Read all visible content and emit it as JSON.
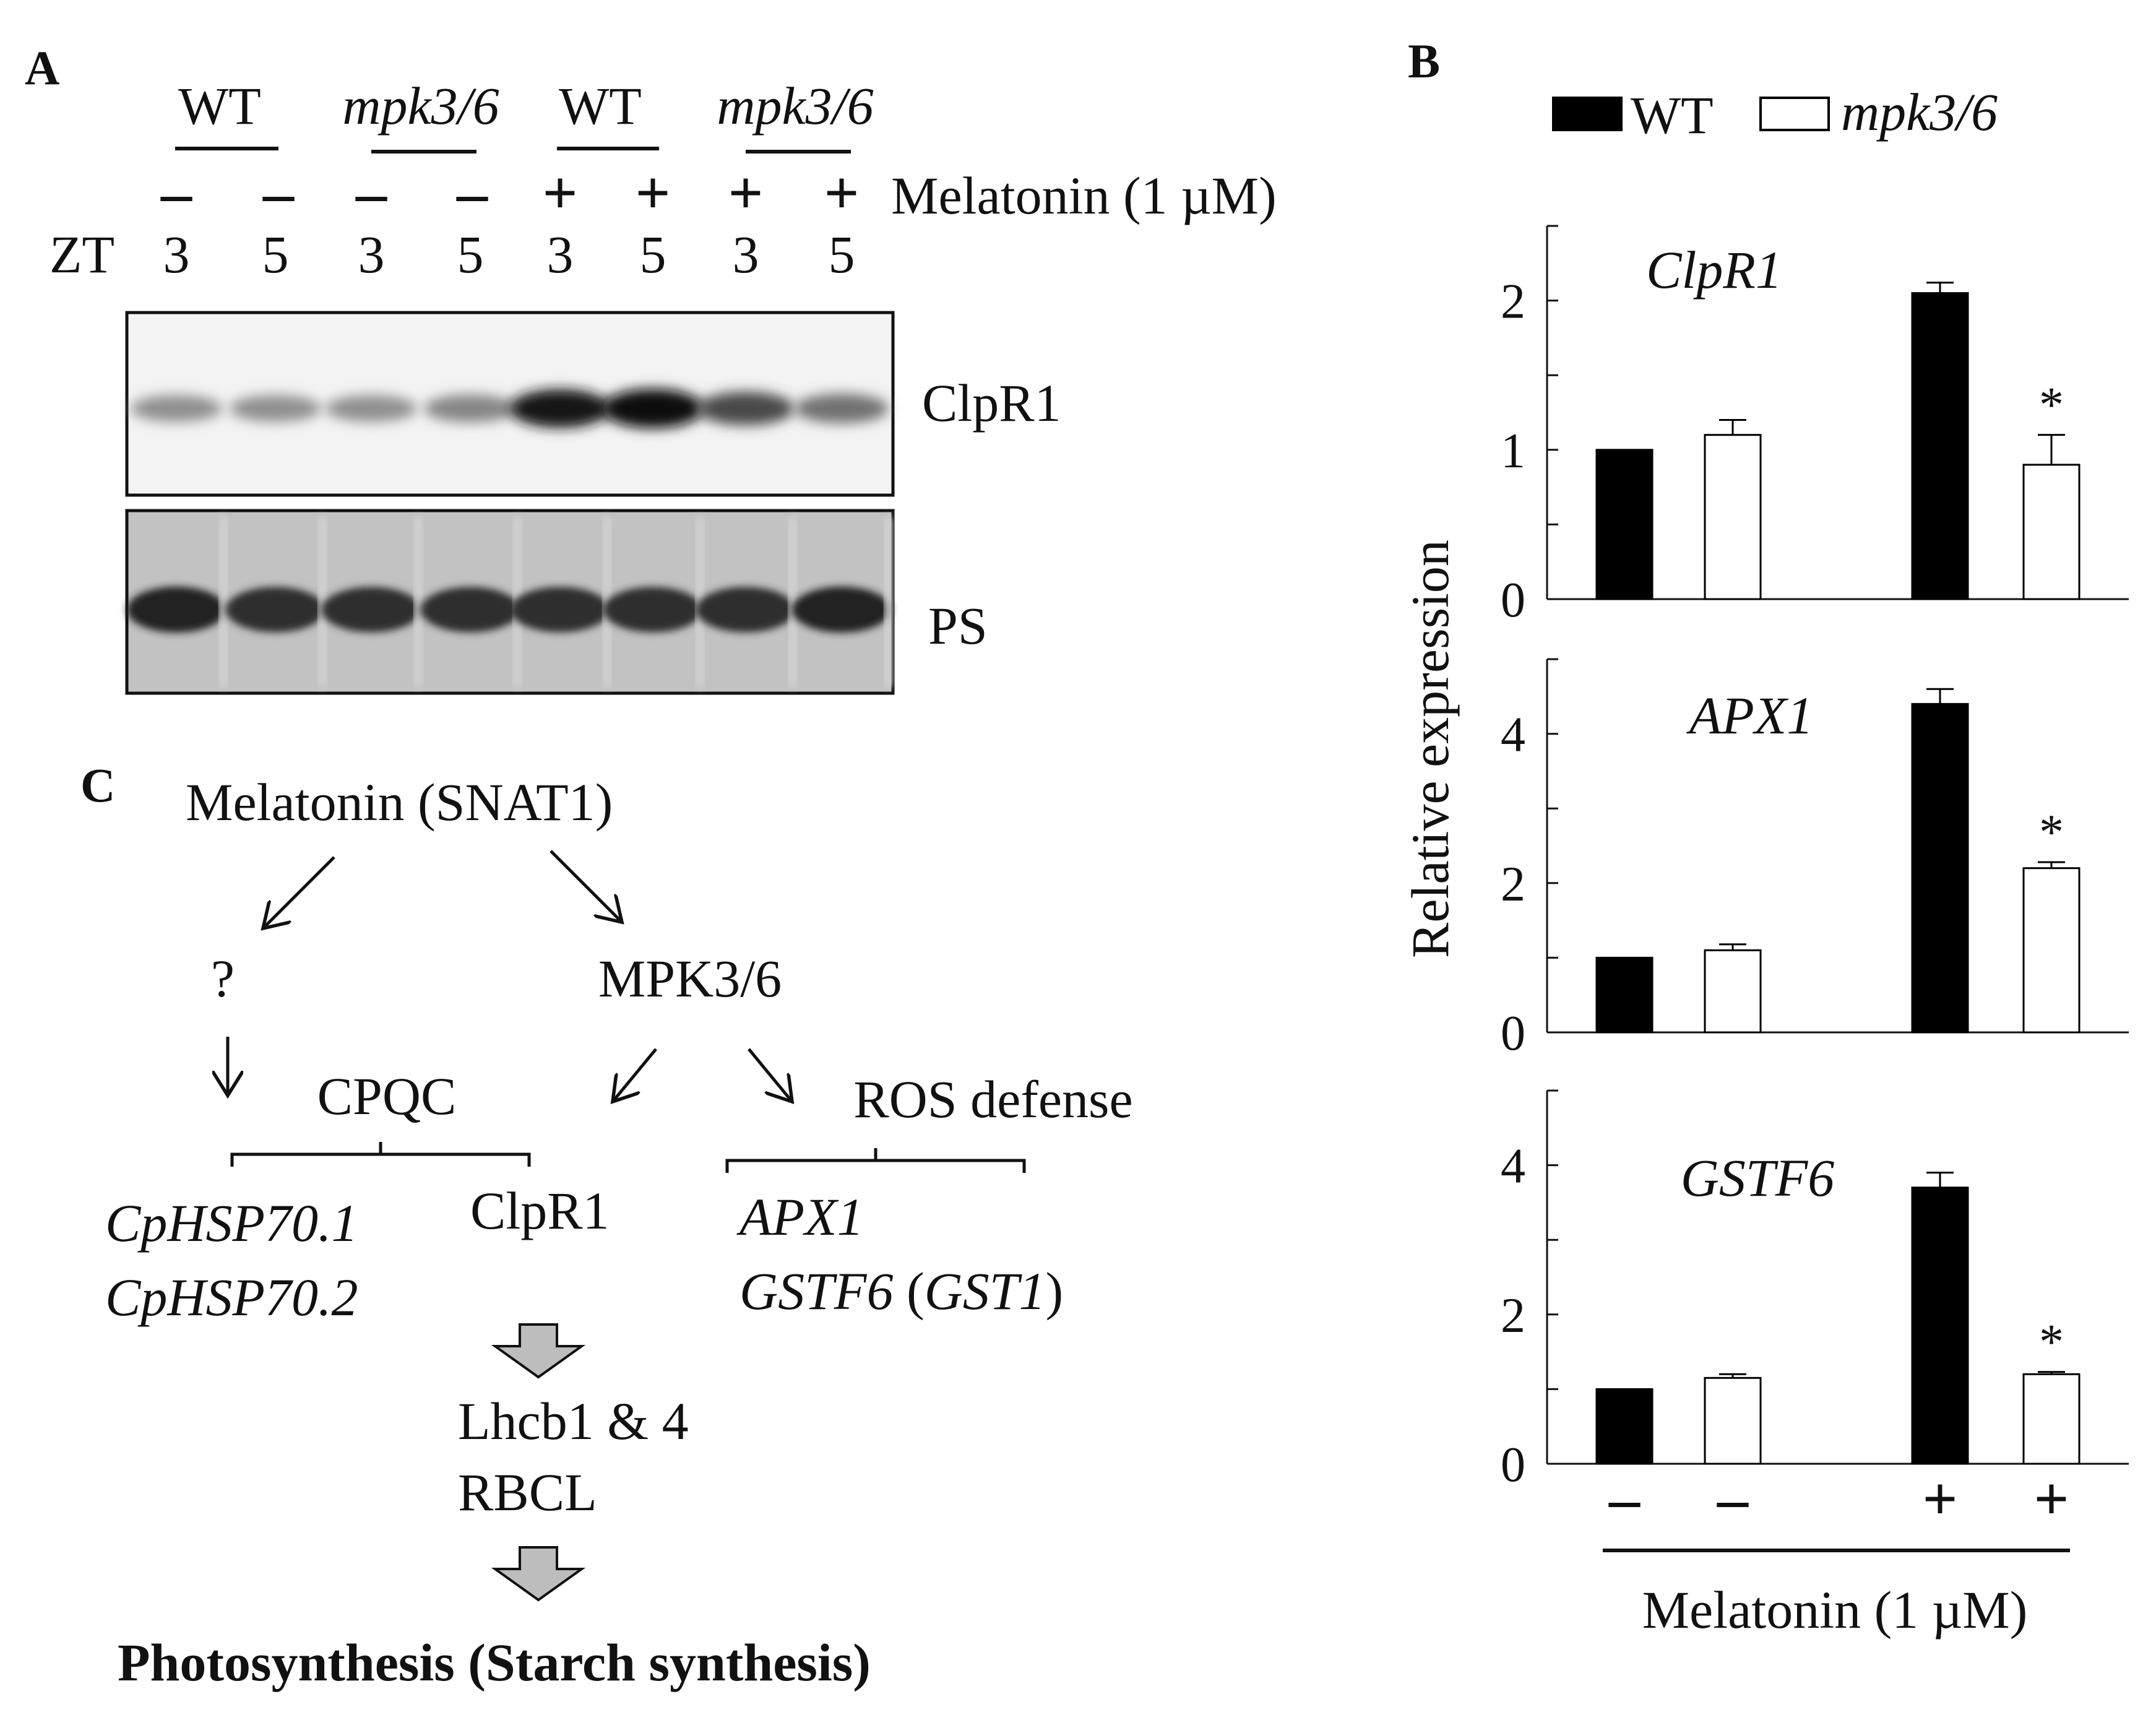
{
  "panel_a": {
    "letter": "A",
    "groups": [
      {
        "label": "WT",
        "italic": false
      },
      {
        "label": "mpk3/6",
        "italic": true
      },
      {
        "label": "WT",
        "italic": false
      },
      {
        "label": "mpk3/6",
        "italic": true
      }
    ],
    "melatonin_signs": [
      "–",
      "–",
      "–",
      "–",
      "+",
      "+",
      "+",
      "+"
    ],
    "treatment_label": "Melatonin (1 µM)",
    "zt_label": "ZT",
    "zt_values": [
      "3",
      "5",
      "3",
      "5",
      "3",
      "5",
      "3",
      "5"
    ],
    "blot_labels": {
      "top": "ClpR1",
      "bottom": "PS"
    },
    "clpr1_band_intensity": [
      0.35,
      0.35,
      0.35,
      0.4,
      0.95,
      1.0,
      0.7,
      0.5
    ],
    "ps_band_intensity": [
      0.9,
      0.85,
      0.85,
      0.85,
      0.85,
      0.85,
      0.85,
      0.9
    ]
  },
  "panel_b": {
    "letter": "B",
    "legend": [
      {
        "label": "WT",
        "color": "#000000",
        "italic": false
      },
      {
        "label": "mpk3/6",
        "color": "#ffffff",
        "italic": true
      }
    ],
    "ylabel": "Relative expression",
    "xlabel": "Melatonin (1 µM)",
    "x_signs": [
      "–",
      "–",
      "+",
      "+"
    ],
    "significance_marker": "*"
  },
  "chart_data": [
    {
      "type": "bar",
      "title": "ClpR1",
      "categories": [
        "WT –",
        "mpk3/6 –",
        "WT +",
        "mpk3/6 +"
      ],
      "values": [
        1.0,
        1.1,
        2.05,
        0.9
      ],
      "errors": [
        0,
        0.1,
        0.07,
        0.2
      ],
      "significant": [
        false,
        false,
        false,
        true
      ],
      "ylim": [
        0,
        2.5
      ],
      "yticks": [
        0,
        1,
        2
      ],
      "ylabel": "Relative expression",
      "xlabel": "Melatonin (1 µM)"
    },
    {
      "type": "bar",
      "title": "APX1",
      "categories": [
        "WT –",
        "mpk3/6 –",
        "WT +",
        "mpk3/6 +"
      ],
      "values": [
        1.0,
        1.1,
        4.4,
        2.2
      ],
      "errors": [
        0,
        0.08,
        0.2,
        0.08
      ],
      "significant": [
        false,
        false,
        false,
        true
      ],
      "ylim": [
        0,
        5
      ],
      "yticks": [
        0,
        2,
        4
      ],
      "ylabel": "Relative expression",
      "xlabel": "Melatonin (1 µM)"
    },
    {
      "type": "bar",
      "title": "GSTF6",
      "categories": [
        "WT –",
        "mpk3/6 –",
        "WT +",
        "mpk3/6 +"
      ],
      "values": [
        1.0,
        1.15,
        3.7,
        1.2
      ],
      "errors": [
        0,
        0.05,
        0.2,
        0.03
      ],
      "significant": [
        false,
        false,
        false,
        true
      ],
      "ylim": [
        0,
        5
      ],
      "yticks": [
        0,
        2,
        4
      ],
      "ylabel": "Relative expression",
      "xlabel": "Melatonin (1 µM)"
    }
  ],
  "panel_c": {
    "letter": "C",
    "melatonin": "Melatonin (SNAT1)",
    "unknown": "?",
    "mpk": "MPK3/6",
    "cpqc": "CPQC",
    "ros": "ROS defense",
    "cphsp1": "CpHSP70.1",
    "cphsp2": "CpHSP70.2",
    "clpr1": "ClpR1",
    "apx1": "APX1",
    "gstf6": "GSTF6",
    "gst1_open": " (",
    "gst1": "GST1",
    "gst1_close": ")",
    "lhcb": "Lhcb1 & 4",
    "rbcl": "RBCL",
    "photosynthesis": "Photosynthesis (Starch synthesis)"
  }
}
